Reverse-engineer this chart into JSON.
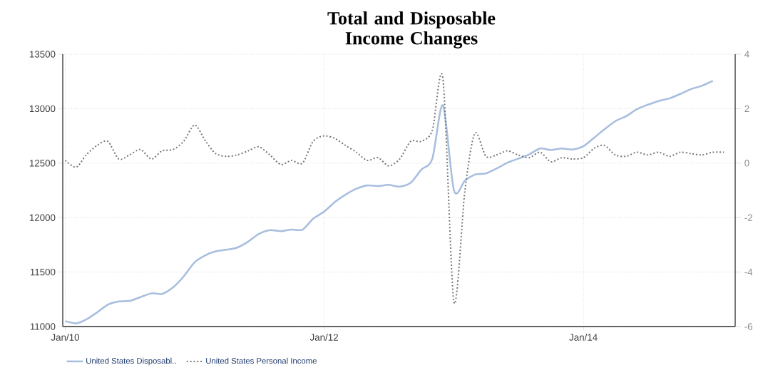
{
  "chart_data": {
    "type": "line",
    "title": "Total and Disposable Income Changes",
    "xlim": [
      "2009-12-25",
      "2015-03-05"
    ],
    "xticks": [
      {
        "value": "2010-01-01",
        "label": "Jan/10"
      },
      {
        "value": "2012-01-01",
        "label": "Jan/12"
      },
      {
        "value": "2014-01-01",
        "label": "Jan/14"
      }
    ],
    "ylim": [
      11000,
      13500
    ],
    "yticks": [
      11000,
      11500,
      12000,
      12500,
      13000,
      13500
    ],
    "y2lim": [
      -6,
      4
    ],
    "y2ticks": [
      -6,
      -4,
      -2,
      0,
      2,
      4
    ],
    "grid": true,
    "legend": "bottom left",
    "x": [
      "2010-01",
      "2010-02",
      "2010-03",
      "2010-04",
      "2010-05",
      "2010-06",
      "2010-07",
      "2010-08",
      "2010-09",
      "2010-10",
      "2010-11",
      "2010-12",
      "2011-01",
      "2011-02",
      "2011-03",
      "2011-04",
      "2011-05",
      "2011-06",
      "2011-07",
      "2011-08",
      "2011-09",
      "2011-10",
      "2011-11",
      "2011-12",
      "2012-01",
      "2012-02",
      "2012-03",
      "2012-04",
      "2012-05",
      "2012-06",
      "2012-07",
      "2012-08",
      "2012-09",
      "2012-10",
      "2012-11",
      "2012-12",
      "2013-01",
      "2013-02",
      "2013-03",
      "2013-04",
      "2013-05",
      "2013-06",
      "2013-07",
      "2013-08",
      "2013-09",
      "2013-10",
      "2013-11",
      "2013-12",
      "2014-01",
      "2014-02",
      "2014-03",
      "2014-04",
      "2014-05",
      "2014-06",
      "2014-07",
      "2014-08",
      "2014-09",
      "2014-10",
      "2014-11",
      "2014-12",
      "2015-01",
      "2015-02"
    ],
    "series": [
      {
        "name": "United States Disposabl..",
        "color": "#a7bede",
        "line_style": "solid",
        "values": [
          11050,
          11030,
          11065,
          11130,
          11200,
          11230,
          11235,
          11270,
          11305,
          11300,
          11360,
          11460,
          11590,
          11655,
          11690,
          11705,
          11725,
          11780,
          11850,
          11885,
          11875,
          11890,
          11890,
          11990,
          12055,
          12145,
          12210,
          12265,
          12295,
          12290,
          12300,
          12285,
          12320,
          12440,
          12540,
          13030,
          12250,
          12340,
          12395,
          12405,
          12450,
          12505,
          12540,
          12580,
          12635,
          12620,
          12635,
          12625,
          12655,
          12735,
          12810,
          12885,
          12930,
          12995,
          13035,
          13070,
          13095,
          13135,
          13180,
          13210,
          13255,
          null
        ]
      },
      {
        "name": "United States Personal Income",
        "color": "#777777",
        "line_style": "dotted",
        "axis": "y2",
        "values": [
          0.1,
          -0.15,
          0.3,
          0.65,
          0.8,
          0.15,
          0.3,
          0.5,
          0.15,
          0.45,
          0.5,
          0.8,
          1.4,
          0.8,
          0.35,
          0.25,
          0.3,
          0.45,
          0.6,
          0.3,
          -0.05,
          0.1,
          0.0,
          0.8,
          1.0,
          0.9,
          0.65,
          0.4,
          0.1,
          0.2,
          -0.1,
          0.15,
          0.8,
          0.8,
          1.2,
          3.1,
          -5.1,
          -1.0,
          1.1,
          0.25,
          0.3,
          0.45,
          0.3,
          0.2,
          0.4,
          0.05,
          0.2,
          0.15,
          0.2,
          0.55,
          0.65,
          0.3,
          0.25,
          0.4,
          0.3,
          0.4,
          0.25,
          0.4,
          0.35,
          0.3,
          0.4,
          0.4
        ]
      }
    ]
  }
}
